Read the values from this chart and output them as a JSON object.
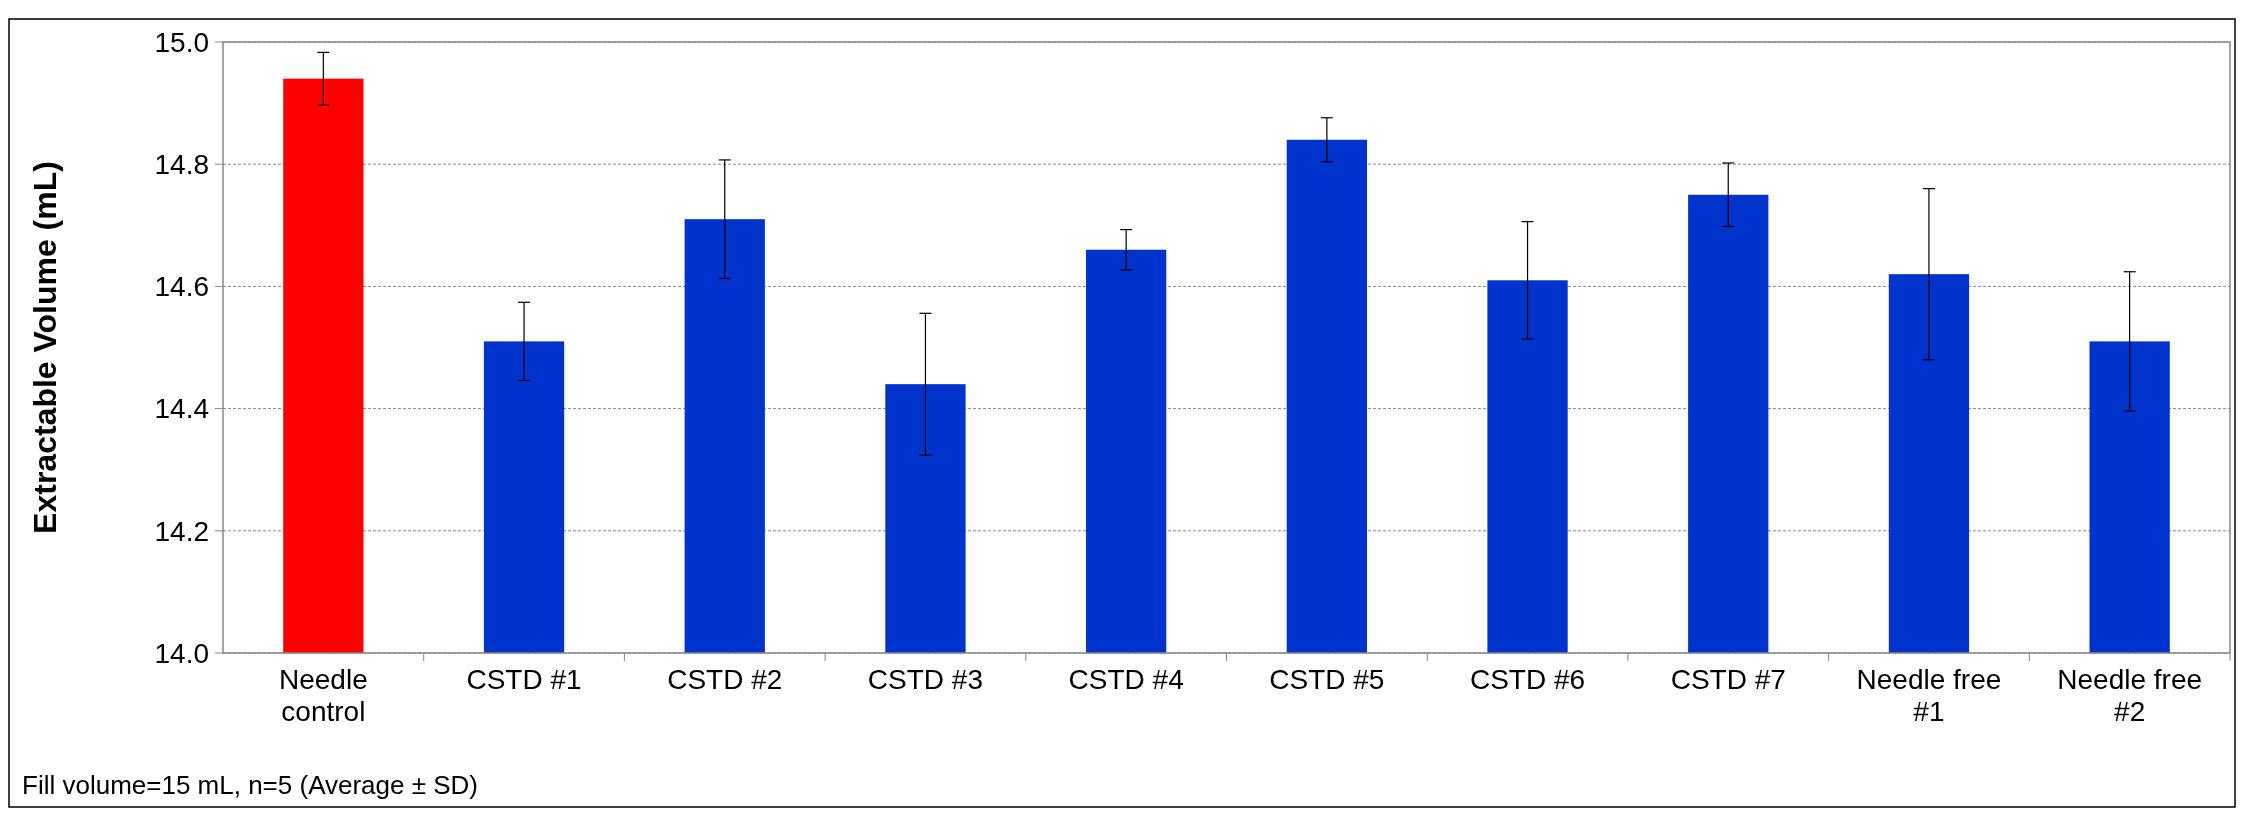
{
  "chart_data": {
    "type": "bar",
    "ylabel": "Extractable Volume (mL)",
    "categories": [
      "Needle control",
      "CSTD #1",
      "CSTD #2",
      "CSTD #3",
      "CSTD #4",
      "CSTD #5",
      "CSTD #6",
      "CSTD #7",
      "Needle free #1",
      "Needle free #2"
    ],
    "values": [
      14.94,
      14.51,
      14.71,
      14.44,
      14.66,
      14.84,
      14.61,
      14.75,
      14.62,
      14.51
    ],
    "errors": [
      0.043,
      0.064,
      0.097,
      0.116,
      0.033,
      0.036,
      0.096,
      0.052,
      0.14,
      0.114
    ],
    "colors": [
      "#ff0000",
      "#0033cc",
      "#0033cc",
      "#0033cc",
      "#0033cc",
      "#0033cc",
      "#0033cc",
      "#0033cc",
      "#0033cc",
      "#0033cc"
    ],
    "ylim": [
      14.0,
      15.0
    ],
    "yticks": [
      {
        "value": 14.0,
        "label": "14.0"
      },
      {
        "value": 14.2,
        "label": "14.2"
      },
      {
        "value": 14.4,
        "label": "14.4"
      },
      {
        "value": 14.6,
        "label": "14.6"
      },
      {
        "value": 14.8,
        "label": "14.8"
      },
      {
        "value": 15.0,
        "label": "15.0"
      }
    ],
    "grid": "y",
    "annotations": [
      "Fill volume=15 mL, n=5 (Average ± SD)"
    ]
  }
}
